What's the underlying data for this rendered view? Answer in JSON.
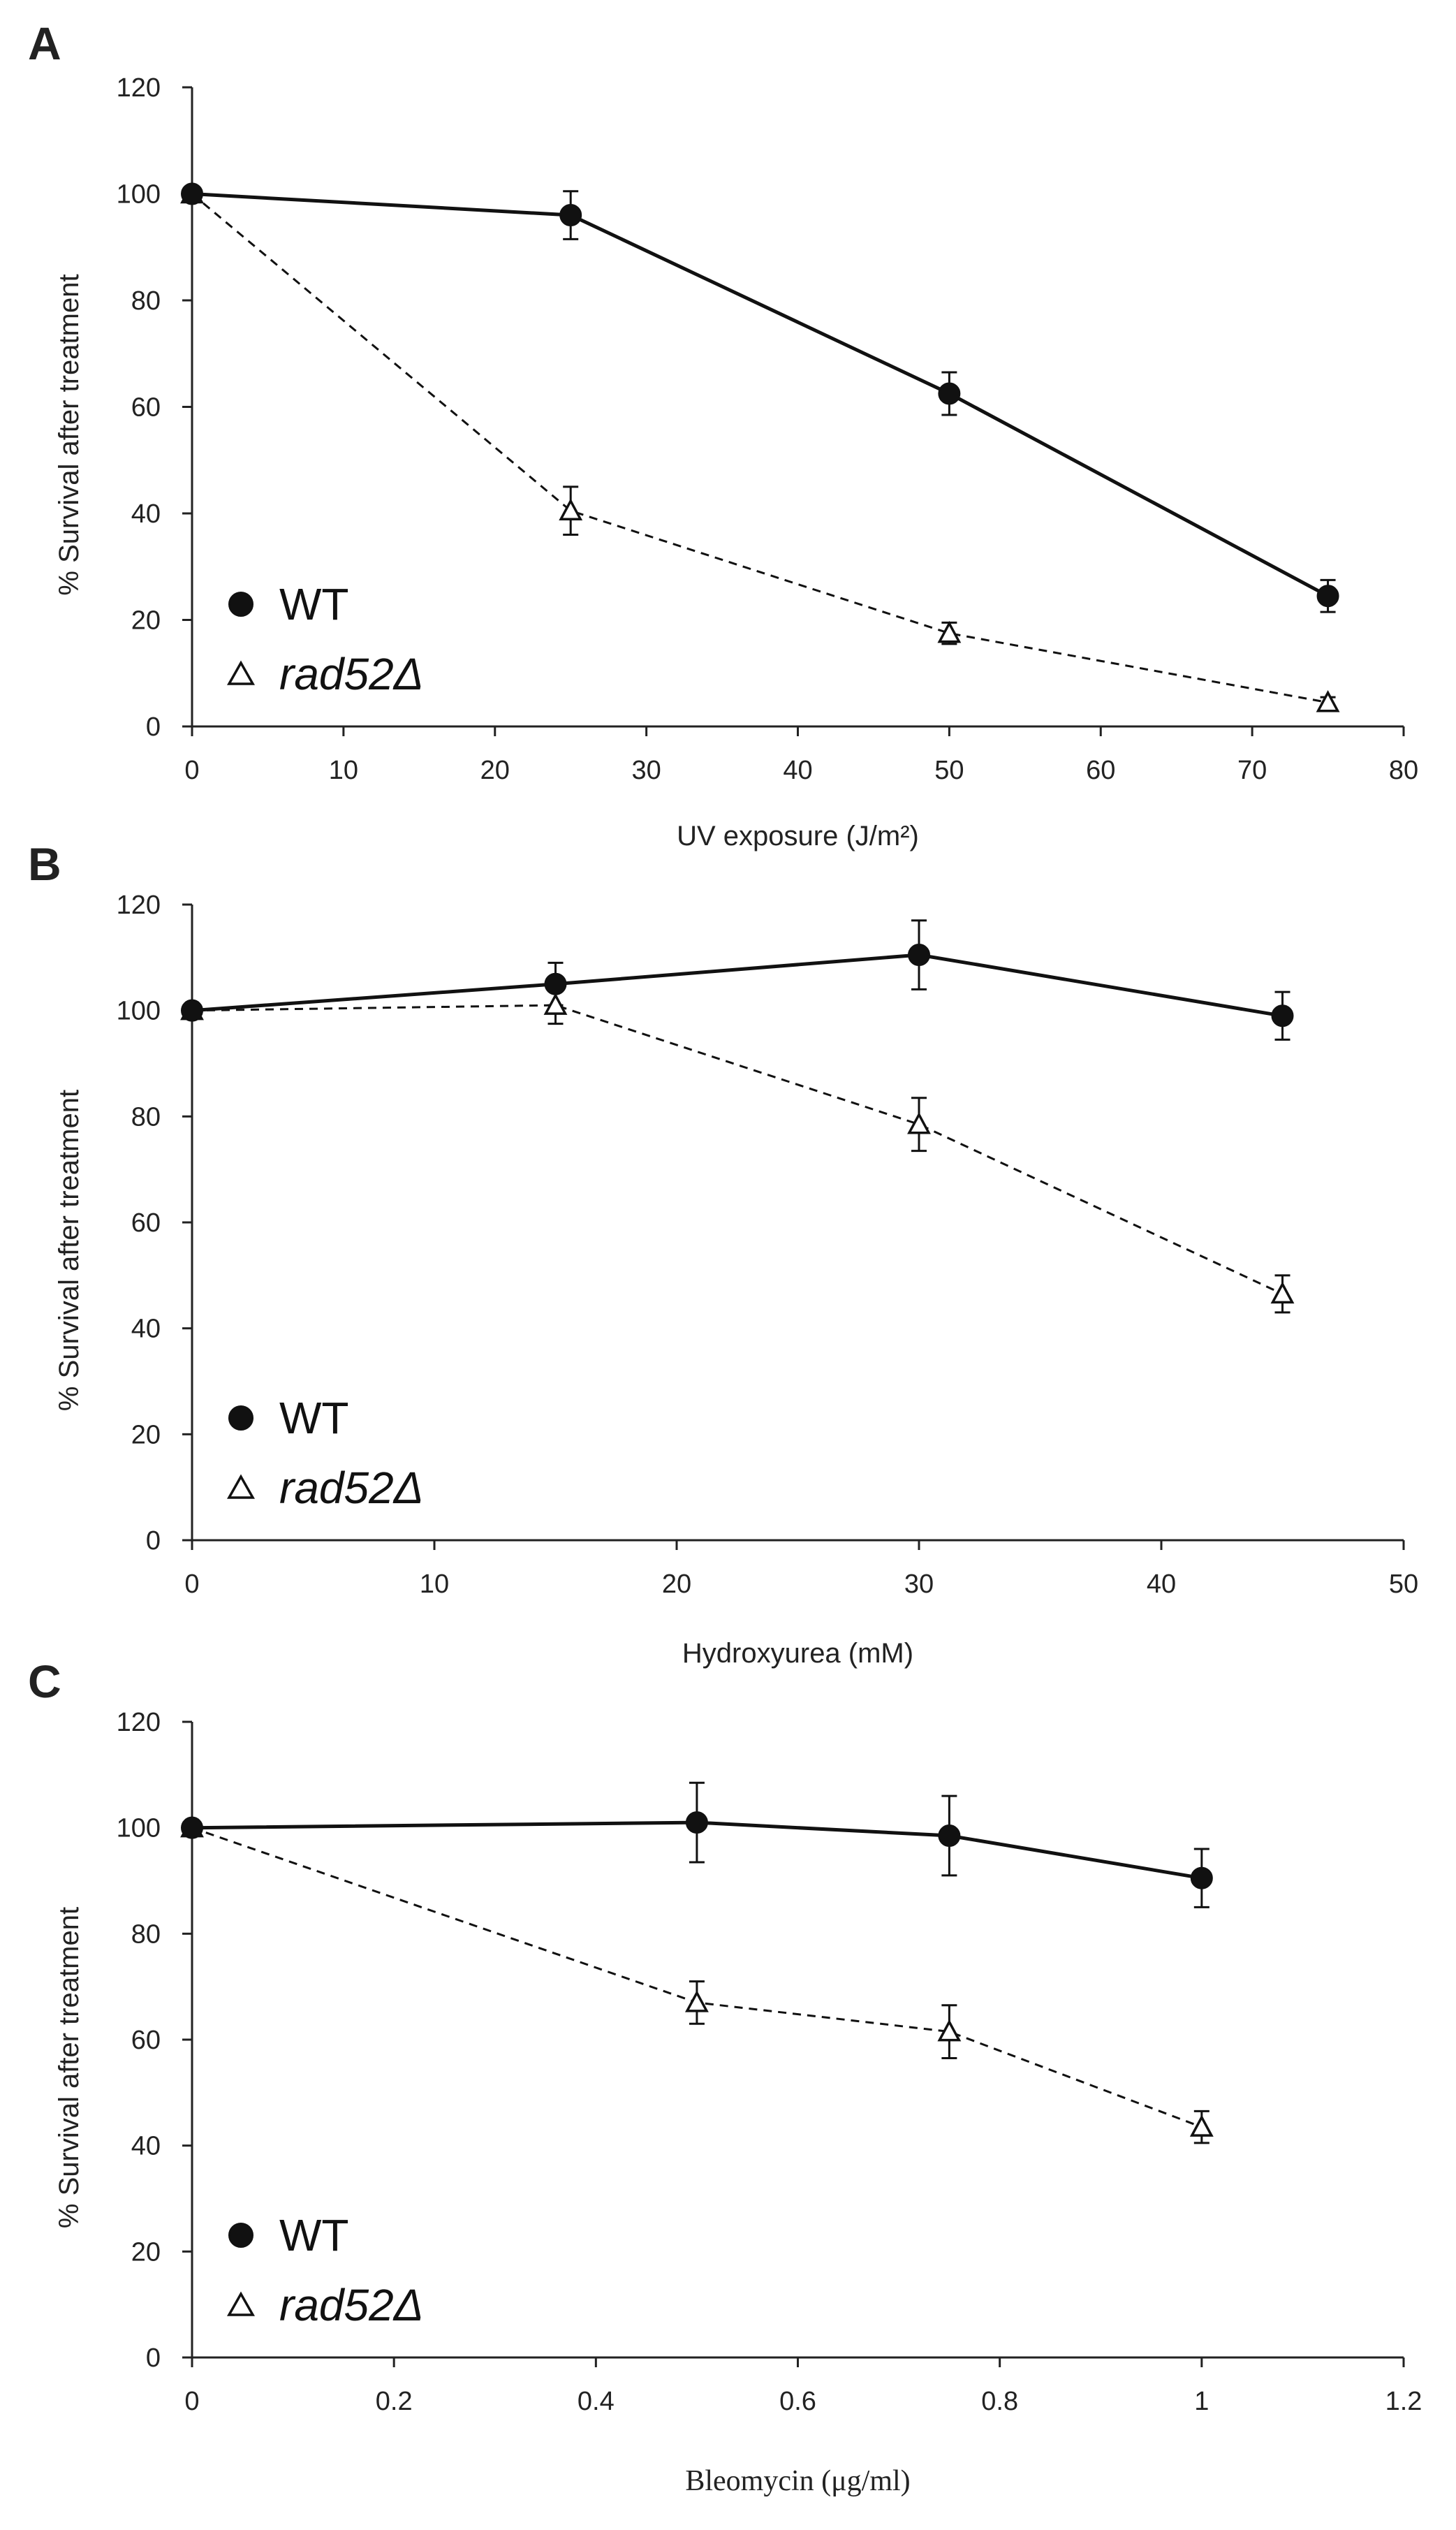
{
  "chart_data": [
    {
      "type": "line",
      "panel": "A",
      "xlabel": "UV exposure (J/m²)",
      "ylabel": "% Survival after treatment",
      "xlim": [
        0,
        80
      ],
      "ylim": [
        0,
        120
      ],
      "xticks": [
        0,
        10,
        20,
        30,
        40,
        50,
        60,
        70,
        80
      ],
      "yticks": [
        0,
        20,
        40,
        60,
        80,
        100,
        120
      ],
      "xtick_labels": [
        "0",
        "10",
        "20",
        "30",
        "40",
        "50",
        "60",
        "70",
        "80"
      ],
      "ytick_labels": [
        "0",
        "20",
        "40",
        "60",
        "80",
        "100",
        "120"
      ],
      "series": [
        {
          "name": "WT",
          "style": "solid",
          "marker": "filled-circle",
          "x": [
            0,
            25,
            50,
            75
          ],
          "values": [
            100,
            96,
            62.5,
            24.5
          ],
          "errors": [
            0,
            4.5,
            4,
            3
          ]
        },
        {
          "name": "rad52Δ",
          "style": "dashed",
          "marker": "open-triangle",
          "x": [
            0,
            25,
            50,
            75
          ],
          "values": [
            100,
            40.5,
            17.5,
            4.5
          ],
          "errors": [
            0,
            4.5,
            2,
            1
          ]
        }
      ],
      "legend": [
        "WT",
        "rad52Δ"
      ]
    },
    {
      "type": "line",
      "panel": "B",
      "xlabel": "Hydroxyurea (mM)",
      "ylabel": "% Survival after treatment",
      "xlim": [
        0,
        50
      ],
      "ylim": [
        0,
        120
      ],
      "xticks": [
        0,
        10,
        20,
        30,
        40,
        50
      ],
      "yticks": [
        0,
        20,
        40,
        60,
        80,
        100,
        120
      ],
      "xtick_labels": [
        "0",
        "10",
        "20",
        "30",
        "40",
        "50"
      ],
      "ytick_labels": [
        "0",
        "20",
        "40",
        "60",
        "80",
        "100",
        "120"
      ],
      "series": [
        {
          "name": "WT",
          "style": "solid",
          "marker": "filled-circle",
          "x": [
            0,
            15,
            30,
            45
          ],
          "values": [
            100,
            105,
            110.5,
            99
          ],
          "errors": [
            0,
            4,
            6.5,
            4.5
          ]
        },
        {
          "name": "rad52Δ",
          "style": "dashed",
          "marker": "open-triangle",
          "x": [
            0,
            15,
            30,
            45
          ],
          "values": [
            100,
            101,
            78.5,
            46.5
          ],
          "errors": [
            0,
            3.5,
            5,
            3.5
          ]
        }
      ],
      "legend": [
        "WT",
        "rad52Δ"
      ]
    },
    {
      "type": "line",
      "panel": "C",
      "xlabel": "Bleomycin (μg/ml)",
      "ylabel": "% Survival after treatment",
      "xlim": [
        0,
        1.2
      ],
      "ylim": [
        0,
        120
      ],
      "xticks": [
        0,
        0.2,
        0.4,
        0.6,
        0.8,
        1.0,
        1.2
      ],
      "yticks": [
        0,
        20,
        40,
        60,
        80,
        100,
        120
      ],
      "xtick_labels": [
        "0",
        "0.2",
        "0.4",
        "0.6",
        "0.8",
        "1",
        "1.2"
      ],
      "ytick_labels": [
        "0",
        "20",
        "40",
        "60",
        "80",
        "100",
        "120"
      ],
      "series": [
        {
          "name": "WT",
          "style": "solid",
          "marker": "filled-circle",
          "x": [
            0,
            0.5,
            0.75,
            1.0
          ],
          "values": [
            100,
            101,
            98.5,
            90.5
          ],
          "errors": [
            0,
            7.5,
            7.5,
            5.5
          ]
        },
        {
          "name": "rad52Δ",
          "style": "dashed",
          "marker": "open-triangle",
          "x": [
            0,
            0.5,
            0.75,
            1.0
          ],
          "values": [
            100,
            67,
            61.5,
            43.5
          ],
          "errors": [
            0,
            4,
            5,
            3
          ]
        }
      ],
      "legend": [
        "WT",
        "rad52Δ"
      ]
    }
  ]
}
